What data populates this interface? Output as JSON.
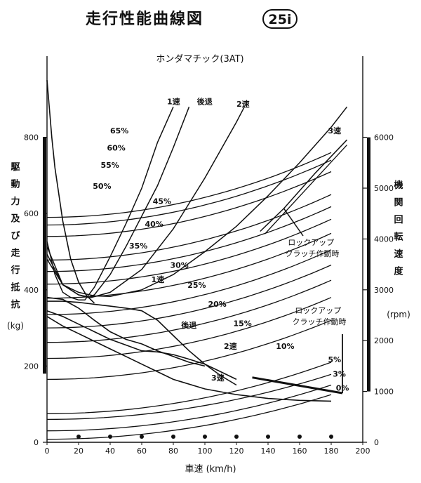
{
  "header": {
    "title": "走行性能曲線図",
    "badge": "25i"
  },
  "chart_data": {
    "type": "line",
    "subtitle": "ホンダマチック(3AT)",
    "xlabel": "車速 (km/h)",
    "ylabel_left": "駆動力及び走行抵抗",
    "ylabel_left_unit": "(kg)",
    "ylabel_right": "機関回転速度",
    "ylabel_right_unit": "(rpm)",
    "xlim": [
      0,
      200
    ],
    "ylim_left": [
      0,
      1000
    ],
    "ylim_right": [
      0,
      6000
    ],
    "x_ticks": [
      0,
      20,
      40,
      60,
      80,
      100,
      120,
      140,
      160,
      180,
      200
    ],
    "y_left_ticks": [
      0,
      200,
      400,
      600,
      800
    ],
    "y_right_ticks": [
      0,
      1000,
      2000,
      3000,
      4000,
      5000,
      6000
    ],
    "grid": false,
    "annotations": {
      "lockup_rpm": "ロックアップ\nクラッチ作動時",
      "lockup_force": "ロックアップ\nクラッチ作動時"
    },
    "rpm_curves": [
      {
        "name": "1速",
        "x": [
          0,
          5,
          10,
          15,
          20,
          24,
          30,
          40,
          50,
          60,
          70,
          80
        ],
        "y": [
          3950,
          3300,
          2950,
          2850,
          2800,
          2800,
          3050,
          3650,
          4300,
          5000,
          5900,
          6600
        ]
      },
      {
        "name": "後退",
        "x": [
          0,
          10,
          20,
          26,
          30,
          40,
          50,
          60,
          70,
          80,
          90
        ],
        "y": [
          3850,
          3100,
          2900,
          2850,
          2900,
          3300,
          3850,
          4450,
          5050,
          5800,
          6600
        ]
      },
      {
        "name": "2速",
        "x": [
          0,
          10,
          20,
          28,
          40,
          60,
          80,
          100,
          120,
          125
        ],
        "y": [
          3700,
          3100,
          2900,
          2850,
          2950,
          3400,
          4200,
          5200,
          6300,
          6600
        ]
      },
      {
        "name": "3速",
        "x": [
          0,
          10,
          20,
          30,
          40,
          60,
          80,
          100,
          120,
          140,
          160,
          180,
          190
        ],
        "y": [
          3600,
          3100,
          2950,
          2880,
          2870,
          3000,
          3300,
          3750,
          4250,
          4850,
          5500,
          6200,
          6600
        ]
      },
      {
        "name": "3速 ロックアップ",
        "x": [
          135,
          150,
          170,
          190
        ],
        "y": [
          4150,
          4600,
          5300,
          5950
        ]
      }
    ],
    "tractive_force": [
      {
        "name": "1速",
        "x": [
          0,
          10,
          20,
          30,
          40,
          50,
          60,
          70,
          80,
          90,
          100,
          110,
          120
        ],
        "y": [
          370,
          370,
          367,
          362,
          357,
          352,
          345,
          320,
          280,
          240,
          205,
          175,
          150
        ]
      },
      {
        "name": "後退",
        "x": [
          0,
          10,
          20,
          30,
          40,
          50,
          60,
          70,
          80,
          90,
          100
        ],
        "y": [
          380,
          375,
          352,
          320,
          290,
          270,
          258,
          240,
          225,
          210,
          200
        ]
      },
      {
        "name": "2速",
        "x": [
          0,
          10,
          20,
          30,
          40,
          50,
          60,
          70,
          80,
          90,
          100,
          110,
          120
        ],
        "y": [
          345,
          330,
          310,
          290,
          270,
          255,
          240,
          237,
          230,
          218,
          205,
          185,
          165
        ]
      },
      {
        "name": "3速",
        "x": [
          0,
          10,
          20,
          30,
          40,
          50,
          60,
          70,
          80,
          100,
          120,
          140,
          160,
          180
        ],
        "y": [
          330,
          305,
          285,
          265,
          245,
          225,
          205,
          185,
          165,
          140,
          125,
          115,
          110,
          108
        ]
      }
    ],
    "converter_curve": {
      "name": "converter",
      "x": [
        0,
        1,
        3,
        5,
        10,
        15,
        20,
        25,
        30
      ],
      "y": [
        950,
        900,
        800,
        720,
        580,
        480,
        420,
        385,
        365
      ]
    },
    "resistance_curves": [
      {
        "label": "0%",
        "y0": 8,
        "y180": 125
      },
      {
        "label": "5%",
        "y0": 30,
        "y180": 150
      },
      {
        "label": "3%",
        "y0": 60,
        "y180": 178
      },
      {
        "label": "",
        "y0": 75,
        "y180": 210
      },
      {
        "label": "10%",
        "y0": 165,
        "y180": 320
      },
      {
        "label": "15%",
        "y0": 220,
        "y180": 380
      },
      {
        "label": "20%",
        "y0": 262,
        "y180": 425
      },
      {
        "label": "25%",
        "y0": 300,
        "y180": 465
      },
      {
        "label": "30%",
        "y0": 335,
        "y180": 505
      },
      {
        "label": "35%",
        "y0": 378,
        "y180": 548
      },
      {
        "label": "40%",
        "y0": 415,
        "y180": 585
      },
      {
        "label": "45%",
        "y0": 448,
        "y180": 618
      },
      {
        "label": "50%",
        "y0": 478,
        "y180": 650
      },
      {
        "label": "55%",
        "y0": 540,
        "y180": 710
      },
      {
        "label": "60%",
        "y0": 570,
        "y180": 740
      },
      {
        "label": "65%",
        "y0": 590,
        "y180": 760
      }
    ],
    "resistance_label_positions": [
      {
        "label": "0%",
        "x": 183,
        "y": 135
      },
      {
        "label": "5%",
        "x": 178,
        "y": 210
      },
      {
        "label": "3%",
        "x": 181,
        "y": 172
      },
      {
        "label": "10%",
        "x": 145,
        "y": 245
      },
      {
        "label": "15%",
        "x": 118,
        "y": 305
      },
      {
        "label": "20%",
        "x": 102,
        "y": 355
      },
      {
        "label": "25%",
        "x": 89,
        "y": 405
      },
      {
        "label": "30%",
        "x": 78,
        "y": 458
      },
      {
        "label": "35%",
        "x": 52,
        "y": 508
      },
      {
        "label": "40%",
        "x": 62,
        "y": 565
      },
      {
        "label": "45%",
        "x": 67,
        "y": 625
      },
      {
        "label": "50%",
        "x": 29,
        "y": 665
      },
      {
        "label": "55%",
        "x": 34,
        "y": 720
      },
      {
        "label": "60%",
        "x": 38,
        "y": 765
      },
      {
        "label": "65%",
        "x": 40,
        "y": 810
      }
    ],
    "force_gear_labels": [
      {
        "label": "1速",
        "x": 66,
        "y": 420
      },
      {
        "label": "後退",
        "x": 85,
        "y": 300
      },
      {
        "label": "2速",
        "x": 112,
        "y": 245
      },
      {
        "label": "3速",
        "x": 104,
        "y": 162
      }
    ],
    "rpm_gear_labels": [
      {
        "label": "1速",
        "x": 76,
        "y": 6650
      },
      {
        "label": "後退",
        "x": 95,
        "y": 6650
      },
      {
        "label": "2速",
        "x": 120,
        "y": 6600
      },
      {
        "label": "3速",
        "x": 178,
        "y": 6080
      }
    ],
    "speed_dots": [
      20,
      40,
      60,
      80,
      100,
      120,
      140,
      160,
      180
    ]
  }
}
